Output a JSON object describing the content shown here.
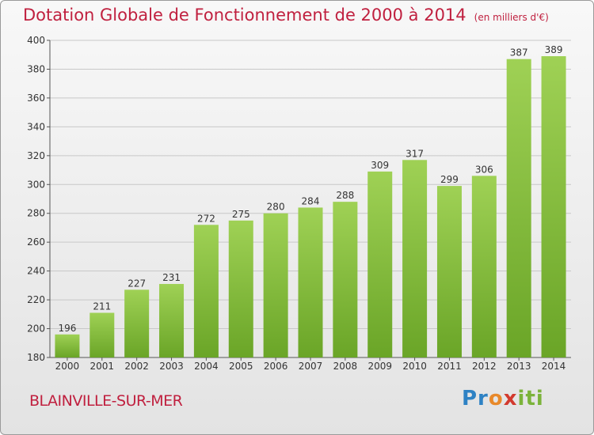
{
  "header": {
    "title": "Dotation Globale de Fonctionnement de 2000 à 2014",
    "unit": "(en milliers d'€)"
  },
  "footer": {
    "commune": "BLAINVILLE-SUR-MER",
    "logo_text": "Proxiti"
  },
  "colors": {
    "title": "#c0203f",
    "bar_light": "#9fd155",
    "bar_dark": "#6aa527",
    "grid": "#c8c8c8"
  },
  "chart_data": {
    "type": "bar",
    "title": "Dotation Globale de Fonctionnement de 2000 à 2014",
    "subtitle": "(en milliers d'€)",
    "xlabel": "",
    "ylabel": "",
    "categories": [
      "2000",
      "2001",
      "2002",
      "2003",
      "2004",
      "2005",
      "2006",
      "2007",
      "2008",
      "2009",
      "2010",
      "2011",
      "2012",
      "2013",
      "2014"
    ],
    "values": [
      196,
      211,
      227,
      231,
      272,
      275,
      280,
      284,
      288,
      309,
      317,
      299,
      306,
      387,
      389
    ],
    "ylim": [
      180,
      400
    ],
    "yticks": [
      180,
      200,
      220,
      240,
      260,
      280,
      300,
      320,
      340,
      360,
      380,
      400
    ],
    "grid": true,
    "legend": "none"
  }
}
